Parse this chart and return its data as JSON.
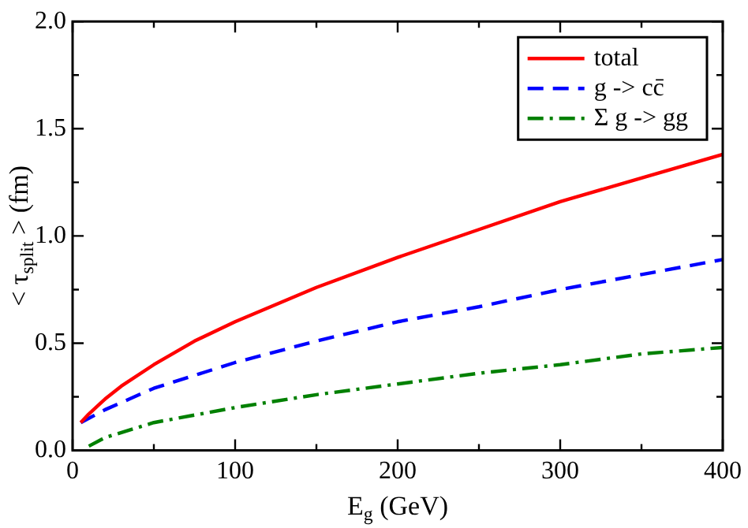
{
  "chart_data": {
    "type": "line",
    "xlabel": "E$_{g}$ (GeV)",
    "ylabel": "< τ$_{split}$ > (fm)",
    "xlim": [
      0,
      400
    ],
    "ylim": [
      0,
      2.0
    ],
    "xticks": [
      0,
      {
        "value": 50,
        "label": null
      },
      100,
      {
        "value": 150,
        "label": null
      },
      200,
      {
        "value": 250,
        "label": null
      },
      300,
      {
        "value": 350,
        "label": null
      },
      400
    ],
    "yticks": [
      {
        "value": 0,
        "label": "0.0"
      },
      {
        "value": 0.25,
        "label": null
      },
      0.5,
      {
        "value": 0.75,
        "label": null
      },
      {
        "value": 1.0,
        "label": "1.0"
      },
      {
        "value": 1.25,
        "label": null
      },
      1.5,
      {
        "value": 1.75,
        "label": null
      },
      {
        "value": 2.0,
        "label": "2.0"
      }
    ],
    "grid": false,
    "legend": "top right",
    "marker": "none",
    "series": [
      {
        "name": "total",
        "color": "#ff0000",
        "line_style": "solid",
        "x": [
          5,
          10,
          20,
          30,
          50,
          75,
          100,
          150,
          200,
          250,
          300,
          350,
          400
        ],
        "values": [
          0.13,
          0.17,
          0.24,
          0.3,
          0.4,
          0.51,
          0.6,
          0.76,
          0.9,
          1.03,
          1.16,
          1.27,
          1.38
        ]
      },
      {
        "name": "g -> cc̄",
        "color": "#0000ff",
        "line_style": "dashed",
        "x": [
          5,
          10,
          20,
          50,
          100,
          150,
          200,
          250,
          300,
          350,
          400
        ],
        "values": [
          0.13,
          0.15,
          0.19,
          0.29,
          0.41,
          0.51,
          0.6,
          0.67,
          0.75,
          0.82,
          0.89
        ]
      },
      {
        "name": "Σ g -> gg",
        "color": "#008000",
        "line_style": "dashdot",
        "x": [
          10,
          20,
          50,
          100,
          150,
          200,
          250,
          300,
          350,
          400
        ],
        "values": [
          0.02,
          0.06,
          0.13,
          0.2,
          0.26,
          0.31,
          0.36,
          0.4,
          0.45,
          0.48
        ]
      }
    ]
  }
}
